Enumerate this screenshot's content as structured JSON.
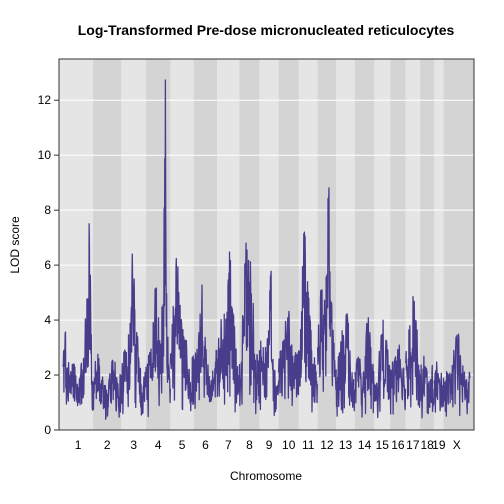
{
  "chart_data": {
    "type": "line",
    "title": "Log-Transformed Pre-dose micronucleated reticulocytes",
    "xlabel": "Chromosome",
    "ylabel": "LOD score",
    "ylim": [
      0,
      13.5
    ],
    "yticks": [
      0,
      2,
      4,
      6,
      8,
      10,
      12
    ],
    "grid": true,
    "line_color": "#483d8b",
    "band_colors": [
      "#e5e5e5",
      "#d4d4d4"
    ],
    "chromosomes": [
      {
        "label": "1",
        "length": 195,
        "peaks": [
          [
            0.0,
            2.3
          ],
          [
            0.08,
            3.6
          ],
          [
            0.2,
            1.9
          ],
          [
            0.35,
            2.4
          ],
          [
            0.5,
            1.5
          ],
          [
            0.68,
            2.6
          ],
          [
            0.82,
            4.6
          ],
          [
            0.88,
            6.8
          ],
          [
            0.92,
            4.2
          ],
          [
            1.0,
            1.6
          ]
        ]
      },
      {
        "label": "2",
        "length": 182,
        "peaks": [
          [
            0.0,
            1.5
          ],
          [
            0.15,
            2.9
          ],
          [
            0.3,
            1.8
          ],
          [
            0.5,
            1.3
          ],
          [
            0.7,
            2.5
          ],
          [
            0.85,
            1.7
          ],
          [
            1.0,
            1.9
          ]
        ]
      },
      {
        "label": "3",
        "length": 160,
        "peaks": [
          [
            0.0,
            2.0
          ],
          [
            0.2,
            2.8
          ],
          [
            0.35,
            3.8
          ],
          [
            0.45,
            5.5
          ],
          [
            0.55,
            4.3
          ],
          [
            0.7,
            2.6
          ],
          [
            0.85,
            1.2
          ],
          [
            1.0,
            2.3
          ]
        ]
      },
      {
        "label": "4",
        "length": 157,
        "peaks": [
          [
            0.0,
            1.8
          ],
          [
            0.2,
            2.9
          ],
          [
            0.4,
            4.6
          ],
          [
            0.55,
            3.2
          ],
          [
            0.7,
            4.1
          ],
          [
            0.8,
            13.2
          ],
          [
            0.84,
            5.2
          ],
          [
            0.92,
            2.1
          ],
          [
            1.0,
            1.5
          ]
        ]
      },
      {
        "label": "5",
        "length": 152,
        "peaks": [
          [
            0.0,
            2.4
          ],
          [
            0.15,
            4.2
          ],
          [
            0.25,
            6.3
          ],
          [
            0.35,
            4.5
          ],
          [
            0.5,
            3.2
          ],
          [
            0.7,
            2.9
          ],
          [
            0.85,
            1.7
          ],
          [
            1.0,
            2.6
          ]
        ]
      },
      {
        "label": "6",
        "length": 150,
        "peaks": [
          [
            0.0,
            2.0
          ],
          [
            0.2,
            3.2
          ],
          [
            0.35,
            5.3
          ],
          [
            0.5,
            2.8
          ],
          [
            0.7,
            1.4
          ],
          [
            0.9,
            2.2
          ],
          [
            1.0,
            2.9
          ]
        ]
      },
      {
        "label": "7",
        "length": 145,
        "peaks": [
          [
            0.0,
            2.6
          ],
          [
            0.2,
            3.6
          ],
          [
            0.45,
            4.3
          ],
          [
            0.6,
            6.2
          ],
          [
            0.75,
            3.4
          ],
          [
            0.9,
            2.1
          ],
          [
            1.0,
            1.6
          ]
        ]
      },
      {
        "label": "8",
        "length": 129,
        "peaks": [
          [
            0.0,
            2.4
          ],
          [
            0.15,
            4.1
          ],
          [
            0.3,
            5.6
          ],
          [
            0.45,
            6.2
          ],
          [
            0.6,
            4.9
          ],
          [
            0.8,
            2.5
          ],
          [
            1.0,
            2.1
          ]
        ]
      },
      {
        "label": "9",
        "length": 124,
        "peaks": [
          [
            0.0,
            2.9
          ],
          [
            0.25,
            2.4
          ],
          [
            0.45,
            2.9
          ],
          [
            0.6,
            6.0
          ],
          [
            0.7,
            2.6
          ],
          [
            0.9,
            1.3
          ],
          [
            1.0,
            1.8
          ]
        ]
      },
      {
        "label": "10",
        "length": 130,
        "peaks": [
          [
            0.0,
            2.1
          ],
          [
            0.2,
            3.2
          ],
          [
            0.45,
            4.1
          ],
          [
            0.6,
            3.0
          ],
          [
            0.8,
            2.4
          ],
          [
            1.0,
            2.9
          ]
        ]
      },
      {
        "label": "11",
        "length": 122,
        "peaks": [
          [
            0.0,
            2.5
          ],
          [
            0.15,
            4.3
          ],
          [
            0.3,
            7.2
          ],
          [
            0.4,
            5.0
          ],
          [
            0.6,
            3.8
          ],
          [
            0.8,
            2.4
          ],
          [
            1.0,
            1.6
          ]
        ]
      },
      {
        "label": "12",
        "length": 120,
        "peaks": [
          [
            0.0,
            3.0
          ],
          [
            0.2,
            4.9
          ],
          [
            0.35,
            3.8
          ],
          [
            0.5,
            5.4
          ],
          [
            0.6,
            8.4
          ],
          [
            0.7,
            4.5
          ],
          [
            0.85,
            3.0
          ],
          [
            1.0,
            2.2
          ]
        ]
      },
      {
        "label": "13",
        "length": 121,
        "peaks": [
          [
            0.0,
            1.8
          ],
          [
            0.2,
            2.8
          ],
          [
            0.4,
            3.2
          ],
          [
            0.6,
            4.1
          ],
          [
            0.75,
            2.3
          ],
          [
            0.9,
            1.6
          ],
          [
            1.0,
            1.4
          ]
        ]
      },
      {
        "label": "14",
        "length": 125,
        "peaks": [
          [
            0.0,
            2.1
          ],
          [
            0.25,
            2.6
          ],
          [
            0.45,
            2.1
          ],
          [
            0.65,
            3.9
          ],
          [
            0.85,
            2.4
          ],
          [
            1.0,
            1.7
          ]
        ]
      },
      {
        "label": "15",
        "length": 104,
        "peaks": [
          [
            0.0,
            1.6
          ],
          [
            0.3,
            2.4
          ],
          [
            0.55,
            4.0
          ],
          [
            0.75,
            2.9
          ],
          [
            1.0,
            2.2
          ]
        ]
      },
      {
        "label": "16",
        "length": 98,
        "peaks": [
          [
            0.0,
            1.8
          ],
          [
            0.3,
            2.6
          ],
          [
            0.6,
            3.1
          ],
          [
            0.85,
            2.2
          ],
          [
            1.0,
            1.5
          ]
        ]
      },
      {
        "label": "17",
        "length": 95,
        "peaks": [
          [
            0.0,
            2.5
          ],
          [
            0.3,
            3.8
          ],
          [
            0.5,
            4.9
          ],
          [
            0.7,
            4.0
          ],
          [
            0.9,
            2.3
          ],
          [
            1.0,
            2.0
          ]
        ]
      },
      {
        "label": "18",
        "length": 90,
        "peaks": [
          [
            0.0,
            1.9
          ],
          [
            0.3,
            2.4
          ],
          [
            0.6,
            1.7
          ],
          [
            0.85,
            2.1
          ],
          [
            1.0,
            1.5
          ]
        ]
      },
      {
        "label": "19",
        "length": 61,
        "peaks": [
          [
            0.0,
            1.7
          ],
          [
            0.3,
            2.2
          ],
          [
            0.6,
            1.6
          ],
          [
            1.0,
            1.9
          ]
        ]
      },
      {
        "label": "X",
        "length": 171,
        "peaks": [
          [
            0.0,
            1.6
          ],
          [
            0.2,
            2.0
          ],
          [
            0.4,
            2.6
          ],
          [
            0.55,
            3.1
          ],
          [
            0.7,
            2.0
          ],
          [
            0.85,
            1.8
          ],
          [
            1.0,
            1.9
          ]
        ]
      }
    ]
  }
}
